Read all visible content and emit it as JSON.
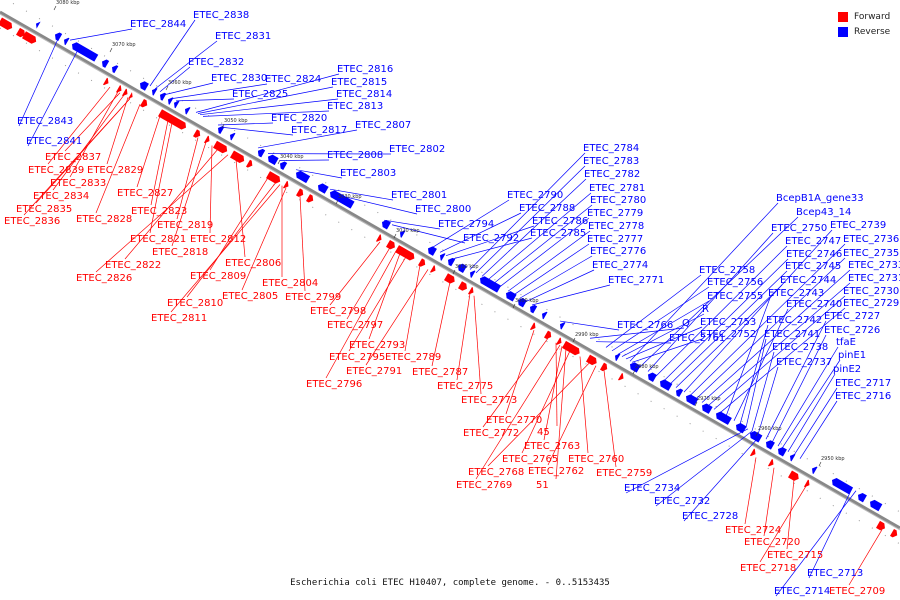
{
  "caption": "Escherichia coli ETEC H10407, complete genome. - 0..5153435",
  "legend": {
    "forward_label": "Forward",
    "reverse_label": "Reverse",
    "forward_color": "#ff0000",
    "reverse_color": "#0000ff"
  },
  "ticks": [
    "3080 kbp",
    "3070 kbp",
    "3060 kbp",
    "3050 kbp",
    "3040 kbp",
    "3030 kbp",
    "3020 kbp",
    "3010 kbp",
    "3000 kbp",
    "2990 kbp",
    "2980 kbp",
    "2970 kbp",
    "2960 kbp",
    "2950 kbp"
  ],
  "labels_reverse": [
    "ETEC_2844",
    "ETEC_2838",
    "ETEC_2831",
    "ETEC_2832",
    "ETEC_2830",
    "ETEC_2824",
    "ETEC_2825",
    "ETEC_2816",
    "ETEC_2815",
    "ETEC_2814",
    "ETEC_2813",
    "ETEC_2843",
    "ETEC_2820",
    "ETEC_2817",
    "ETEC_2807",
    "ETEC_2841",
    "ETEC_2802",
    "ETEC_2808",
    "ETEC_2803",
    "ETEC_2801",
    "ETEC_2800",
    "ETEC_2794",
    "ETEC_2792",
    "ETEC_2790",
    "ETEC_2788",
    "ETEC_2786",
    "ETEC_2785",
    "ETEC_2784",
    "ETEC_2783",
    "ETEC_2782",
    "ETEC_2781",
    "ETEC_2780",
    "ETEC_2779",
    "ETEC_2778",
    "ETEC_2777",
    "ETEC_2776",
    "ETEC_2774",
    "ETEC_2771",
    "BcepB1A_gene33",
    "Bcep43_14",
    "ETEC_2750",
    "ETEC_2747",
    "ETEC_2746",
    "ETEC_2745",
    "ETEC_2744",
    "ETEC_2739",
    "ETEC_2736",
    "ETEC_2735",
    "ETEC_2733",
    "ETEC_2731",
    "ETEC_2730",
    "ETEC_2729",
    "ETEC_2758",
    "ETEC_2756",
    "ETEC_2755",
    "R",
    "ETEC_2753",
    "ETEC_2752",
    "ETEC_2766",
    "Q",
    "ETEC_2761",
    "ETEC_2743",
    "ETEC_2740",
    "ETEC_2742",
    "ETEC_2741",
    "ETEC_2738",
    "ETEC_2737",
    "ETEC_2727",
    "ETEC_2726",
    "tfaE",
    "pinE1",
    "pinE2",
    "ETEC_2717",
    "ETEC_2716",
    "ETEC_2734",
    "ETEC_2732",
    "ETEC_2728",
    "ETEC_2713",
    "ETEC_2714"
  ],
  "labels_forward": [
    "ETEC_2837",
    "ETEC_2839",
    "ETEC_2829",
    "ETEC_2833",
    "ETEC_2834",
    "ETEC_2827",
    "ETEC_2835",
    "ETEC_2828",
    "ETEC_2823",
    "ETEC_2836",
    "ETEC_2819",
    "ETEC_2821",
    "ETEC_2812",
    "ETEC_2818",
    "ETEC_2806",
    "ETEC_2822",
    "ETEC_2809",
    "ETEC_2804",
    "ETEC_2826",
    "ETEC_2805",
    "ETEC_2799",
    "ETEC_2810",
    "ETEC_2798",
    "ETEC_2811",
    "ETEC_2797",
    "ETEC_2793",
    "ETEC_2795",
    "ETEC_2789",
    "ETEC_2791",
    "ETEC_2787",
    "ETEC_2796",
    "ETEC_2775",
    "ETEC_2773",
    "ETEC_2770",
    "ETEC_2772",
    "45",
    "ETEC_2763",
    "ETEC_2765",
    "ETEC_2760",
    "ETEC_2768",
    "ETEC_2762",
    "ETEC_2759",
    "ETEC_2769",
    "51",
    "ETEC_2724",
    "ETEC_2720",
    "ETEC_2715",
    "ETEC_2718",
    "ETEC_2709"
  ]
}
